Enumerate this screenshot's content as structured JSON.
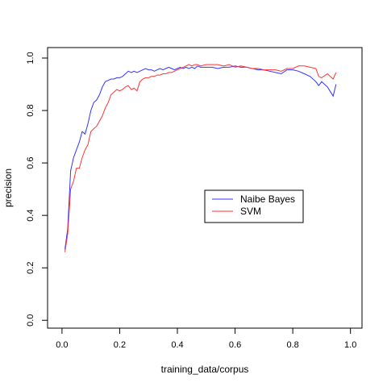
{
  "chart_data": {
    "type": "line",
    "title": "",
    "xlabel": "training_data/corpus",
    "ylabel": "precision",
    "xlim": [
      -0.05,
      1.04
    ],
    "ylim": [
      -0.03,
      1.04
    ],
    "xticks": [
      0.0,
      0.2,
      0.4,
      0.6,
      0.8,
      1.0
    ],
    "xtick_labels": [
      "0.0",
      "0.2",
      "0.4",
      "0.6",
      "0.8",
      "1.0"
    ],
    "yticks": [
      0.0,
      0.2,
      0.4,
      0.6,
      0.8,
      1.0
    ],
    "ytick_labels": [
      "0.0",
      "0.2",
      "0.4",
      "0.6",
      "0.8",
      "1.0"
    ],
    "grid": false,
    "legend_position": "center-right",
    "series": [
      {
        "name": "Naibe Bayes",
        "color": "#3333ff",
        "x": [
          0.01,
          0.02,
          0.03,
          0.04,
          0.05,
          0.06,
          0.07,
          0.08,
          0.09,
          0.1,
          0.11,
          0.12,
          0.13,
          0.14,
          0.15,
          0.16,
          0.17,
          0.18,
          0.19,
          0.2,
          0.21,
          0.22,
          0.23,
          0.24,
          0.25,
          0.26,
          0.27,
          0.28,
          0.29,
          0.3,
          0.31,
          0.32,
          0.33,
          0.34,
          0.35,
          0.36,
          0.37,
          0.38,
          0.39,
          0.4,
          0.41,
          0.42,
          0.43,
          0.44,
          0.45,
          0.46,
          0.47,
          0.48,
          0.5,
          0.52,
          0.54,
          0.56,
          0.58,
          0.6,
          0.62,
          0.64,
          0.66,
          0.68,
          0.7,
          0.72,
          0.74,
          0.76,
          0.78,
          0.8,
          0.82,
          0.84,
          0.86,
          0.88,
          0.89,
          0.9,
          0.92,
          0.94,
          0.95
        ],
        "y": [
          0.27,
          0.35,
          0.57,
          0.62,
          0.65,
          0.68,
          0.72,
          0.71,
          0.75,
          0.8,
          0.83,
          0.84,
          0.86,
          0.89,
          0.91,
          0.915,
          0.92,
          0.92,
          0.925,
          0.925,
          0.93,
          0.94,
          0.95,
          0.945,
          0.95,
          0.945,
          0.95,
          0.955,
          0.96,
          0.955,
          0.955,
          0.95,
          0.955,
          0.96,
          0.955,
          0.96,
          0.965,
          0.96,
          0.955,
          0.96,
          0.965,
          0.96,
          0.965,
          0.96,
          0.965,
          0.96,
          0.97,
          0.965,
          0.965,
          0.965,
          0.96,
          0.965,
          0.965,
          0.97,
          0.965,
          0.965,
          0.96,
          0.955,
          0.955,
          0.95,
          0.945,
          0.94,
          0.955,
          0.955,
          0.95,
          0.94,
          0.93,
          0.91,
          0.895,
          0.91,
          0.89,
          0.855,
          0.9
        ]
      },
      {
        "name": "SVM",
        "color": "#ff3333",
        "x": [
          0.01,
          0.02,
          0.03,
          0.04,
          0.05,
          0.06,
          0.07,
          0.08,
          0.09,
          0.1,
          0.11,
          0.12,
          0.13,
          0.14,
          0.15,
          0.16,
          0.17,
          0.18,
          0.19,
          0.2,
          0.21,
          0.22,
          0.23,
          0.24,
          0.25,
          0.26,
          0.27,
          0.28,
          0.29,
          0.3,
          0.31,
          0.32,
          0.33,
          0.34,
          0.35,
          0.36,
          0.37,
          0.38,
          0.39,
          0.4,
          0.41,
          0.42,
          0.43,
          0.44,
          0.45,
          0.46,
          0.47,
          0.48,
          0.5,
          0.52,
          0.54,
          0.56,
          0.58,
          0.6,
          0.62,
          0.64,
          0.66,
          0.68,
          0.7,
          0.72,
          0.74,
          0.76,
          0.78,
          0.8,
          0.82,
          0.84,
          0.86,
          0.88,
          0.89,
          0.9,
          0.92,
          0.94,
          0.95
        ],
        "y": [
          0.26,
          0.33,
          0.5,
          0.53,
          0.58,
          0.58,
          0.62,
          0.65,
          0.67,
          0.72,
          0.73,
          0.74,
          0.76,
          0.78,
          0.81,
          0.83,
          0.86,
          0.87,
          0.88,
          0.875,
          0.88,
          0.89,
          0.895,
          0.88,
          0.885,
          0.875,
          0.91,
          0.92,
          0.925,
          0.925,
          0.93,
          0.93,
          0.935,
          0.935,
          0.94,
          0.94,
          0.945,
          0.945,
          0.95,
          0.955,
          0.96,
          0.965,
          0.97,
          0.975,
          0.97,
          0.975,
          0.975,
          0.97,
          0.975,
          0.975,
          0.975,
          0.97,
          0.975,
          0.965,
          0.97,
          0.965,
          0.96,
          0.96,
          0.955,
          0.955,
          0.955,
          0.95,
          0.96,
          0.96,
          0.97,
          0.97,
          0.965,
          0.96,
          0.93,
          0.925,
          0.94,
          0.92,
          0.945
        ]
      }
    ]
  }
}
